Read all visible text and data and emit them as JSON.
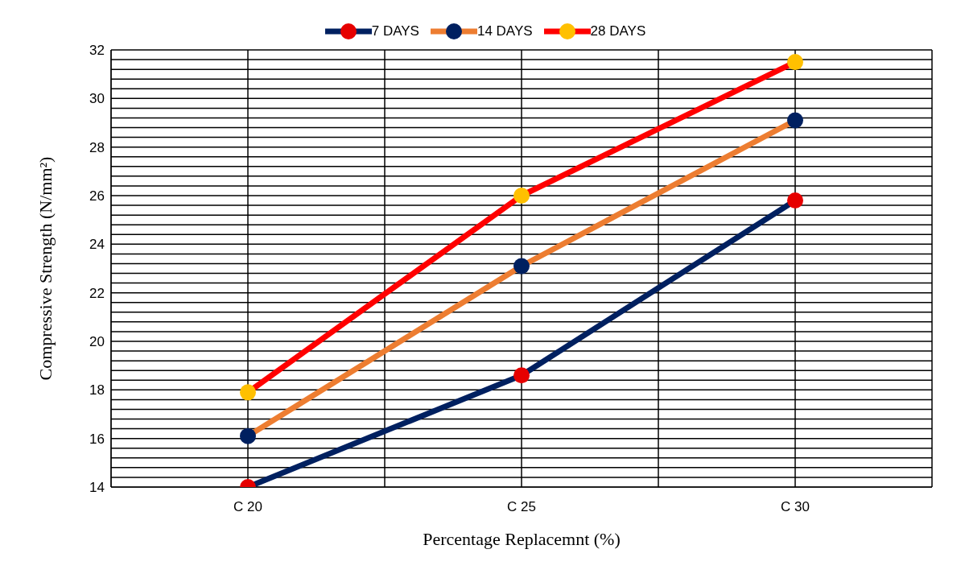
{
  "chart_data": {
    "type": "line",
    "xlabel": "Percentage Replacemnt (%)",
    "ylabel": "Compressive Strength (N/mm²)",
    "categories": [
      "C 20",
      "C 25",
      "C 30"
    ],
    "series": [
      {
        "name": "7 DAYS",
        "color": "#002060",
        "colors": [
          "#e60000",
          "#e60000",
          "#e60000"
        ],
        "values": [
          14.0,
          18.6,
          25.8
        ]
      },
      {
        "name": "14 DAYS",
        "color": "#ed7d31",
        "colors": [
          "#002060",
          "#002060",
          "#002060"
        ],
        "values": [
          16.1,
          23.1,
          29.1
        ]
      },
      {
        "name": "28 DAYS",
        "color": "#ff0000",
        "colors": [
          "#ffc000",
          "#ffc000",
          "#ffc000"
        ],
        "values": [
          17.9,
          26.0,
          31.5
        ]
      }
    ],
    "ylim": [
      14,
      32
    ],
    "yticks": [
      14,
      {
        "value": 14.4,
        "label": null
      },
      {
        "value": 14.8,
        "label": null
      },
      {
        "value": 15.2,
        "label": null
      },
      {
        "value": 15.6,
        "label": null
      },
      16,
      {
        "value": 16.4,
        "label": null
      },
      {
        "value": 16.8,
        "label": null
      },
      {
        "value": 17.2,
        "label": null
      },
      {
        "value": 17.6,
        "label": null
      },
      18,
      {
        "value": 18.4,
        "label": null
      },
      {
        "value": 18.8,
        "label": null
      },
      {
        "value": 19.2,
        "label": null
      },
      {
        "value": 19.6,
        "label": null
      },
      20,
      {
        "value": 20.4,
        "label": null
      },
      {
        "value": 20.8,
        "label": null
      },
      {
        "value": 21.2,
        "label": null
      },
      {
        "value": 21.6,
        "label": null
      },
      22,
      {
        "value": 22.4,
        "label": null
      },
      {
        "value": 22.8,
        "label": null
      },
      {
        "value": 23.2,
        "label": null
      },
      {
        "value": 23.6,
        "label": null
      },
      24,
      {
        "value": 24.4,
        "label": null
      },
      {
        "value": 24.8,
        "label": null
      },
      {
        "value": 25.2,
        "label": null
      },
      {
        "value": 25.6,
        "label": null
      },
      26,
      {
        "value": 26.4,
        "label": null
      },
      {
        "value": 26.8,
        "label": null
      },
      {
        "value": 27.2,
        "label": null
      },
      {
        "value": 27.6,
        "label": null
      },
      28,
      {
        "value": 28.4,
        "label": null
      },
      {
        "value": 28.8,
        "label": null
      },
      {
        "value": 29.2,
        "label": null
      },
      {
        "value": 29.6,
        "label": null
      },
      30,
      {
        "value": 30.4,
        "label": null
      },
      {
        "value": 30.8,
        "label": null
      },
      {
        "value": 31.2,
        "label": null
      },
      {
        "value": 31.6,
        "label": null
      },
      32
    ],
    "grid": true,
    "legend": "top",
    "marker": "circle",
    "line_style": "solid"
  }
}
